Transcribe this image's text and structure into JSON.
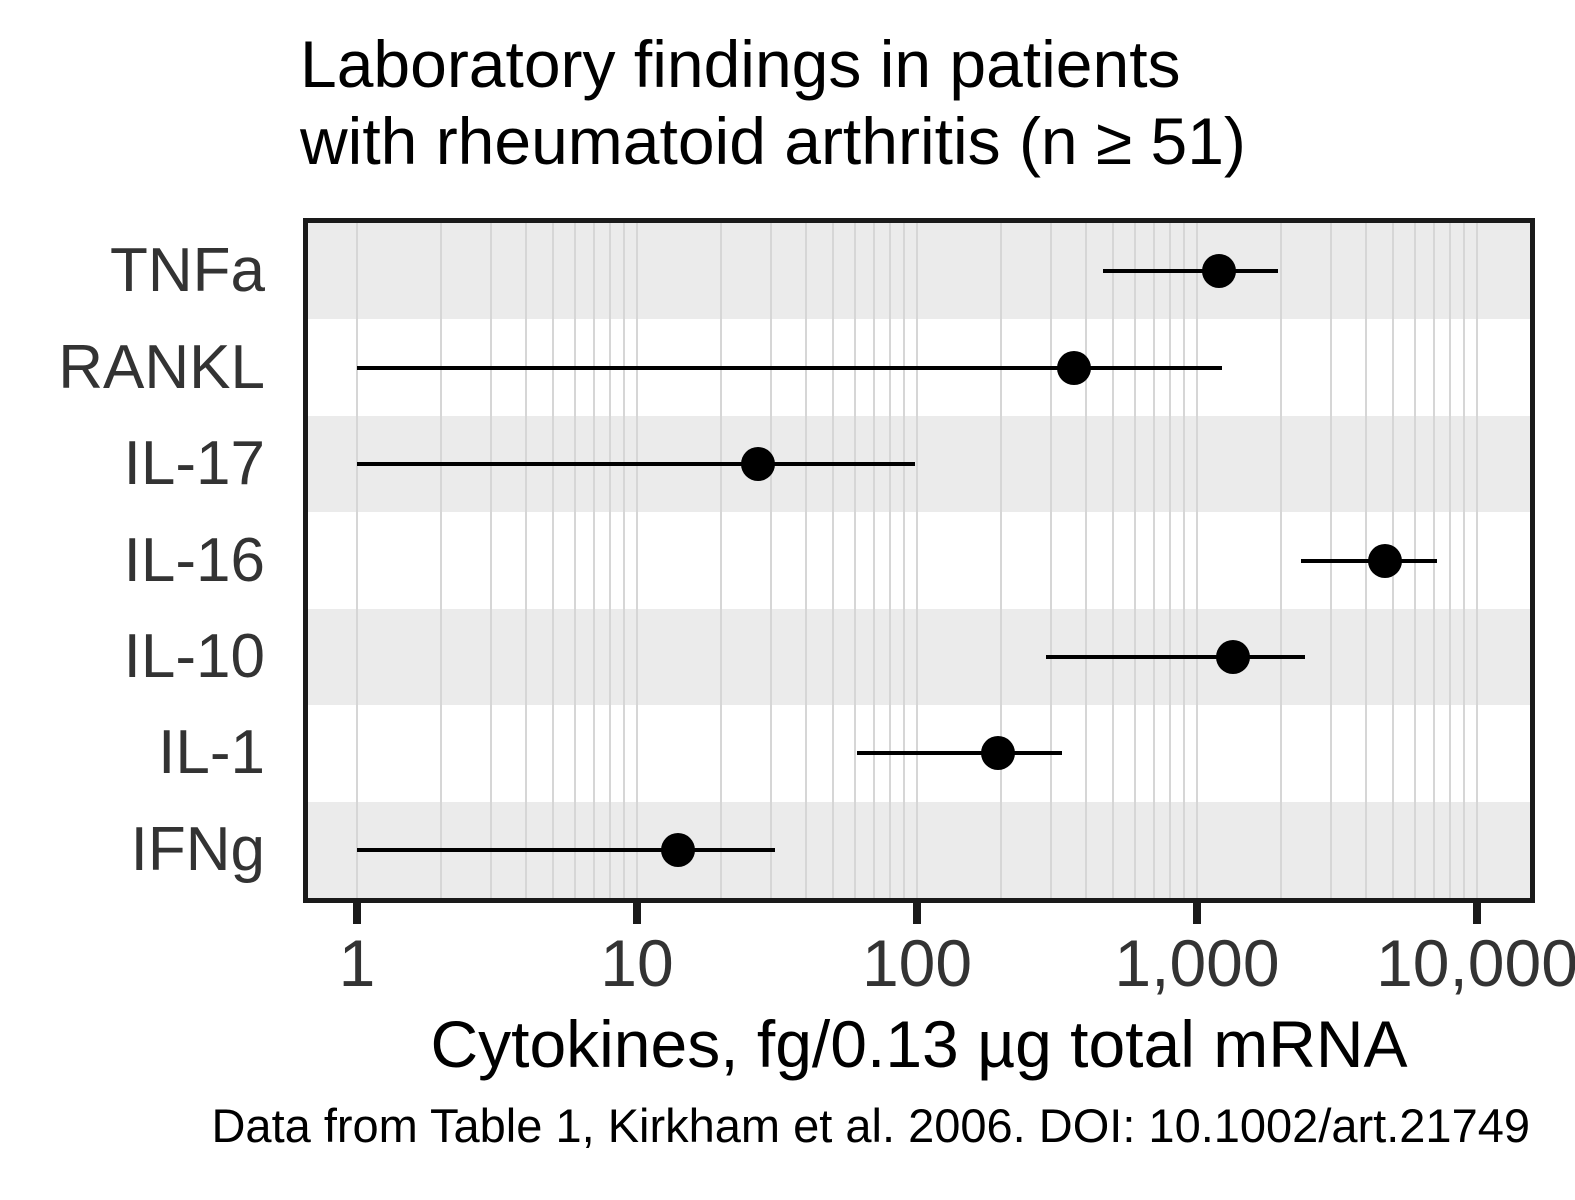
{
  "title": {
    "lines": [
      "Laboratory findings in patients",
      "with rheumatoid arthritis (n ≥ 51)"
    ]
  },
  "caption": "Data from Table 1, Kirkham et al. 2006. DOI: 10.1002/art.21749",
  "chart_data": {
    "type": "scatter",
    "subtype": "dot-with-interval",
    "orientation": "horizontal",
    "title": "Laboratory findings in patients with rheumatoid arthritis (n ≥ 51)",
    "categories": [
      "TNFa",
      "RANKL",
      "IL-17",
      "IL-16",
      "IL-10",
      "IL-1",
      "IFNg"
    ],
    "series": [
      {
        "name": "center",
        "values": [
          1200,
          365,
          27,
          4700,
          1340,
          195,
          14
        ]
      },
      {
        "name": "interval_low",
        "values": [
          460,
          1,
          1,
          2350,
          290,
          61,
          1
        ]
      },
      {
        "name": "interval_high",
        "values": [
          1950,
          1230,
          98,
          7200,
          2430,
          330,
          31
        ]
      }
    ],
    "xlabel": "Cytokines, fg/0.13 µg total mRNA",
    "ylabel": "",
    "xscale": "log10",
    "xlim": [
      0.66,
      15800
    ],
    "xticks": [
      1,
      10,
      100,
      1000,
      10000
    ],
    "xtick_labels": [
      "1",
      "10",
      "100",
      "1,000",
      "10,000"
    ],
    "grid": "vertical log minor gridlines on",
    "legend": "none",
    "stripe_rows": [
      0,
      2,
      4,
      6
    ],
    "colors": {
      "point": "#000000",
      "interval": "#000000",
      "stripe": "#ebebeb",
      "gridline": "#d6d6d6",
      "panel_border": "#1a1a1a",
      "axis_text": "#333333",
      "title_text": "#000000"
    }
  }
}
